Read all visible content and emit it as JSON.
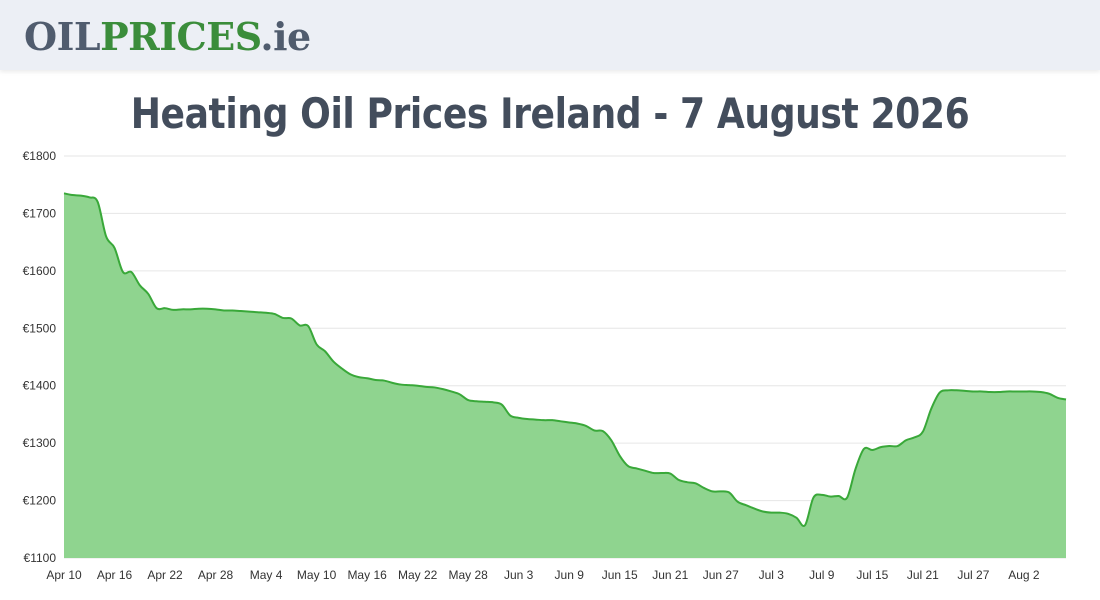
{
  "header": {
    "logo_part1": "OIL",
    "logo_part2": "PRICES",
    "logo_part3": ".ie"
  },
  "colors": {
    "area_fill": "#8fd48f",
    "line": "#39a839",
    "grid": "#e6e6e6",
    "header_bg": "#eceff5",
    "logo_dark": "#505c6e",
    "logo_green": "#3b8d3b",
    "title": "#434d5c"
  },
  "chart_data": {
    "type": "area",
    "title": "Heating Oil Prices Ireland - 7 August 2026",
    "xlabel": "",
    "ylabel": "",
    "grid": true,
    "ylim": [
      1100,
      1800
    ],
    "y_ticks": [
      1800,
      1700,
      1600,
      1500,
      1400,
      1300,
      1200,
      1100
    ],
    "y_tick_labels": [
      "€1800",
      "€1700",
      "€1600",
      "€1500",
      "€1400",
      "€1300",
      "€1200",
      "€1100"
    ],
    "x_tick_labels": [
      "Apr 10",
      "Apr 16",
      "Apr 22",
      "Apr 28",
      "May 4",
      "May 10",
      "May 16",
      "May 22",
      "May 28",
      "Jun 3",
      "Jun 9",
      "Jun 15",
      "Jun 21",
      "Jun 27",
      "Jul 3",
      "Jul 9",
      "Jul 15",
      "Jul 21",
      "Jul 27",
      "Aug 2"
    ],
    "x_tick_days": [
      0,
      6,
      12,
      18,
      24,
      30,
      36,
      42,
      48,
      54,
      60,
      66,
      72,
      78,
      84,
      90,
      96,
      102,
      108,
      114
    ],
    "xlim_days": [
      0,
      119
    ],
    "series": [
      {
        "values": [
          1735,
          1732,
          1731,
          1728,
          1720,
          1660,
          1640,
          1598,
          1598,
          1575,
          1560,
          1535,
          1535,
          1532,
          1533,
          1533,
          1534,
          1534,
          1533,
          1531,
          1531,
          1530,
          1529,
          1528,
          1527,
          1525,
          1518,
          1517,
          1505,
          1504,
          1472,
          1460,
          1442,
          1430,
          1420,
          1415,
          1413,
          1410,
          1409,
          1405,
          1402,
          1401,
          1400,
          1398,
          1397,
          1394,
          1390,
          1385,
          1375,
          1373,
          1372,
          1371,
          1367,
          1348,
          1344,
          1342,
          1341,
          1340,
          1340,
          1338,
          1336,
          1334,
          1330,
          1322,
          1321,
          1305,
          1278,
          1260,
          1256,
          1252,
          1248,
          1248,
          1247,
          1236,
          1232,
          1230,
          1222,
          1216,
          1216,
          1214,
          1198,
          1192,
          1186,
          1181,
          1179,
          1179,
          1177,
          1170,
          1157,
          1205,
          1210,
          1207,
          1208,
          1205,
          1255,
          1290,
          1288,
          1293,
          1295,
          1295,
          1305,
          1310,
          1320,
          1360,
          1388,
          1392,
          1392,
          1391,
          1390,
          1390,
          1389,
          1389,
          1390,
          1390,
          1390,
          1390,
          1389,
          1386,
          1379,
          1376
        ]
      }
    ]
  }
}
